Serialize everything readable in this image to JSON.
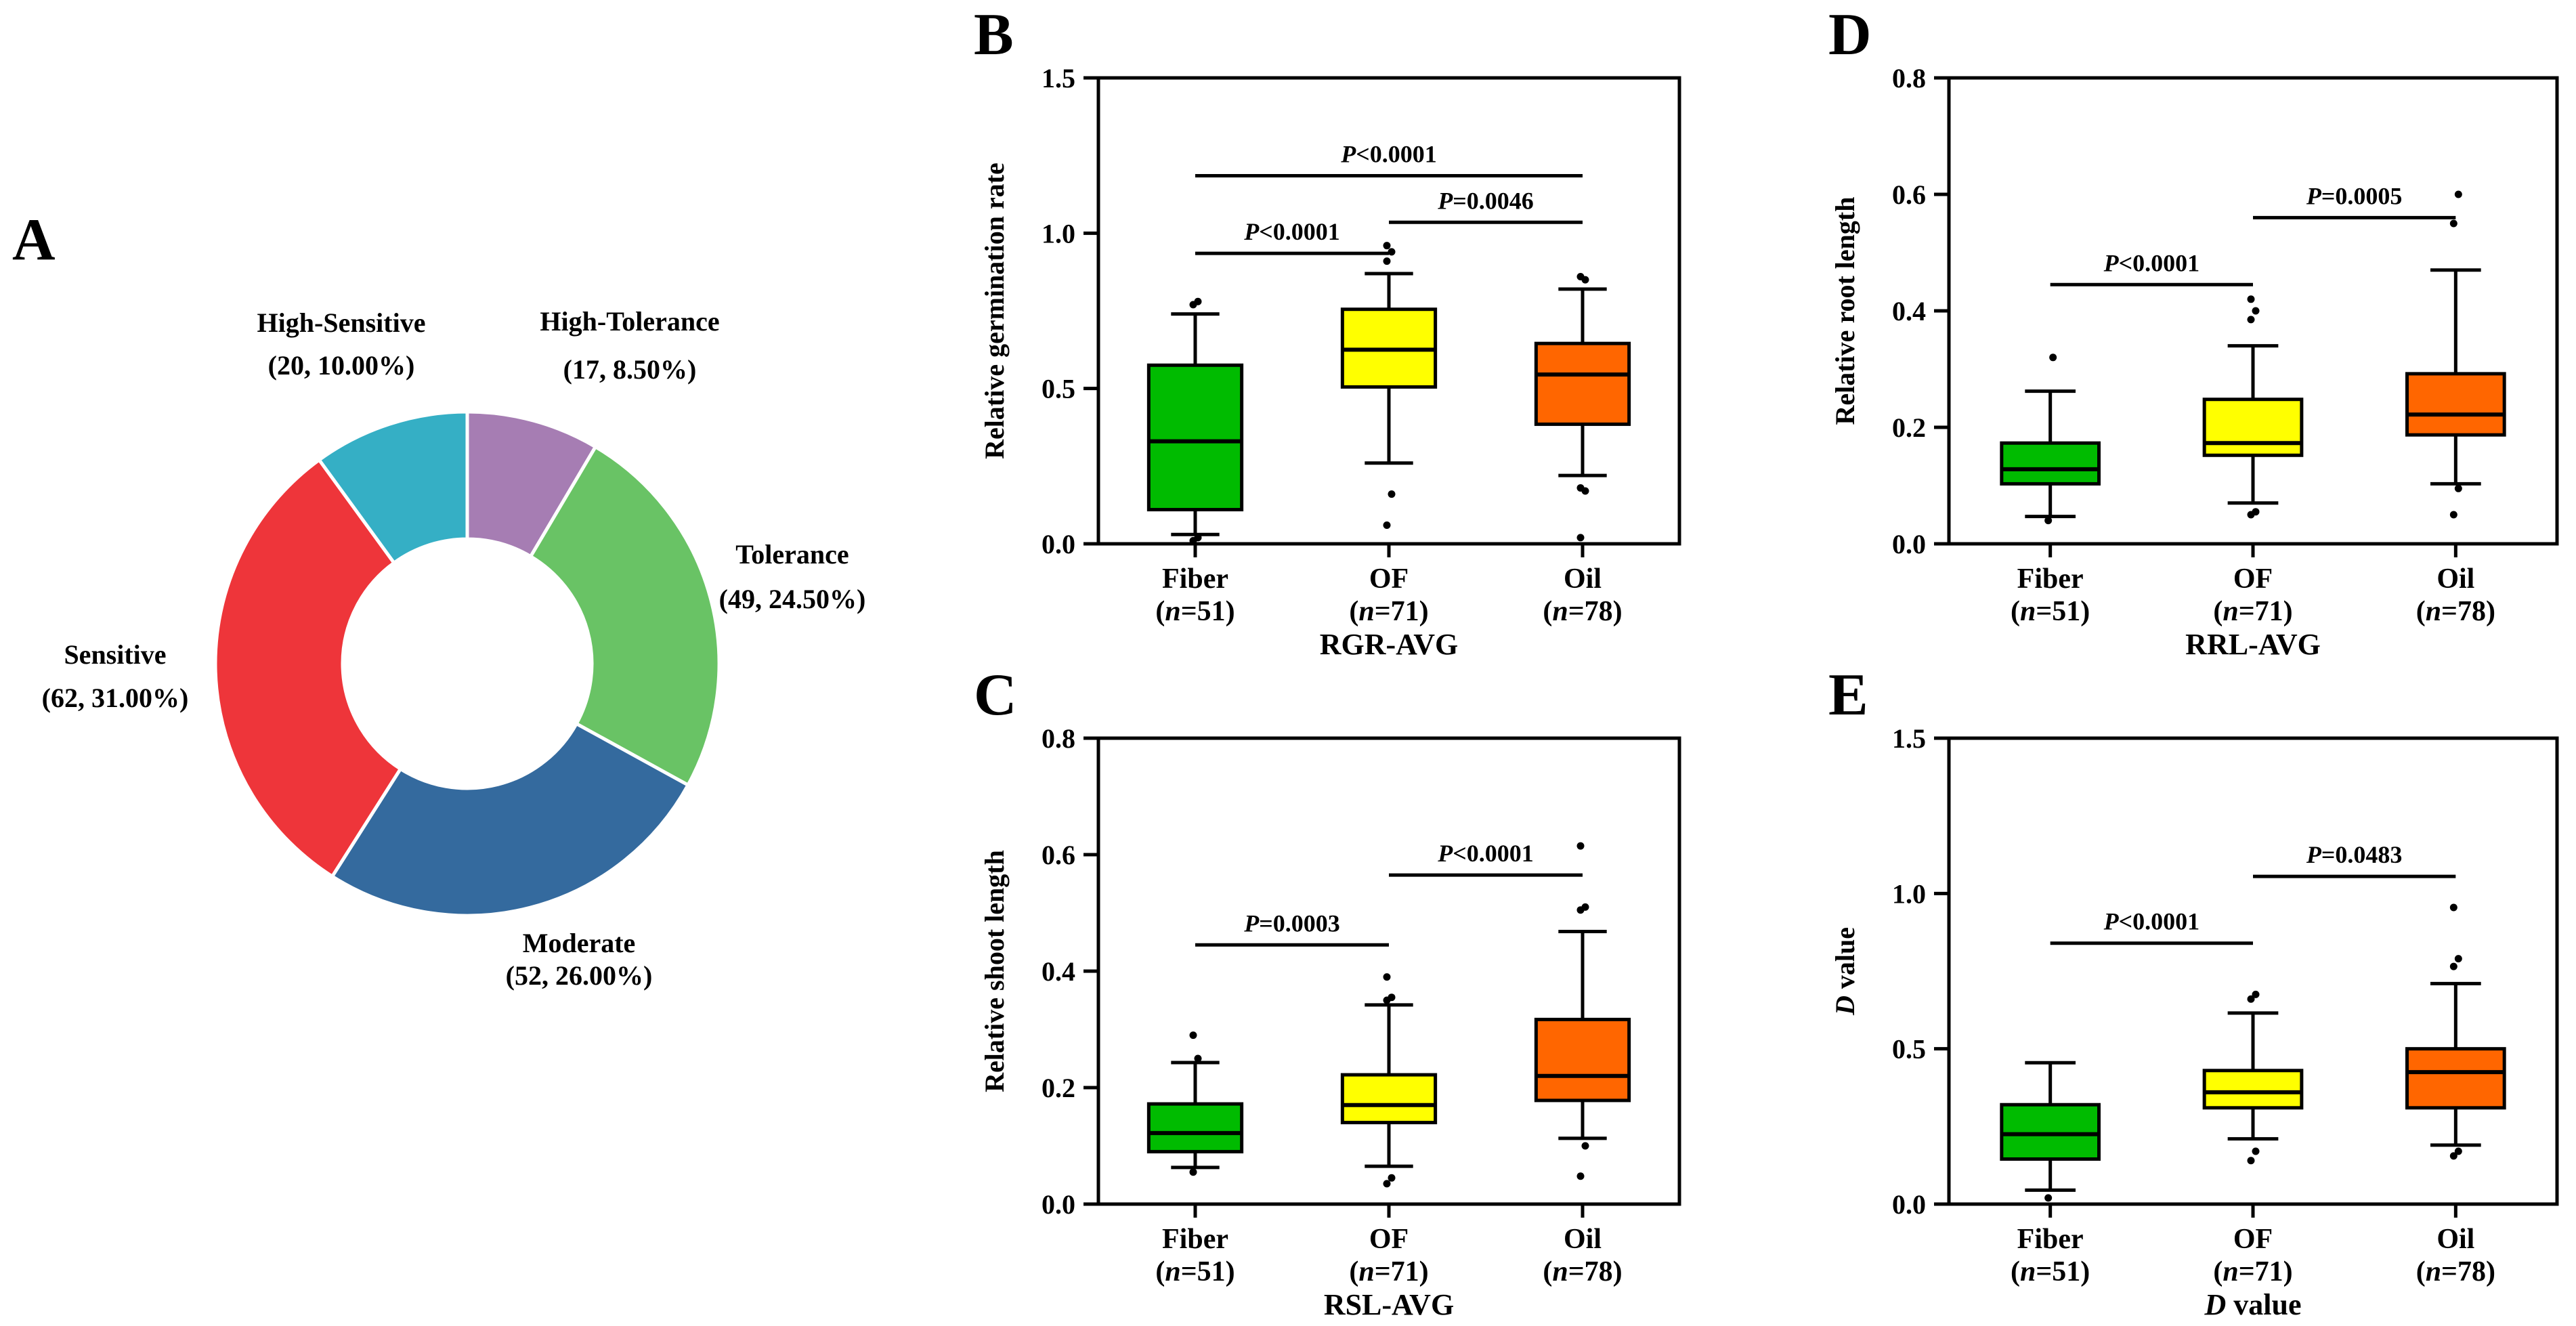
{
  "panel_letters": {
    "a": "A",
    "b": "B",
    "c": "C",
    "d": "D",
    "e": "E"
  },
  "chart_data": [
    {
      "type": "pie",
      "variant": "donut",
      "panel": "A",
      "title": "",
      "slices": [
        {
          "label": "High-Tolerance",
          "value": 17,
          "percent": "8.50%",
          "annotation": "(17, 8.50%)",
          "color": "#a67db3"
        },
        {
          "label": "Tolerance",
          "value": 49,
          "percent": "24.50%",
          "annotation": "(49, 24.50%)",
          "color": "#69c365"
        },
        {
          "label": "Moderate",
          "value": 52,
          "percent": "26.00%",
          "annotation": "(52, 26.00%)",
          "color": "#346a9e"
        },
        {
          "label": "Sensitive",
          "value": 62,
          "percent": "31.00%",
          "annotation": "(62, 31.00%)",
          "color": "#ee353a"
        },
        {
          "label": "High-Sensitive",
          "value": 20,
          "percent": "10.00%",
          "annotation": "(20, 10.00%)",
          "color": "#35afc5"
        }
      ]
    },
    {
      "type": "box",
      "panel": "B",
      "title": "",
      "xlabel": "RGR-AVG",
      "ylabel": "Relative germination rate",
      "ylim": [
        0,
        1.5
      ],
      "yticks": [
        "0.0",
        "0.5",
        "1.0",
        "1.5"
      ],
      "ytick_values": [
        0,
        0.5,
        1.0,
        1.5
      ],
      "categories": [
        {
          "name": "Fiber",
          "n_label": "(n=51)",
          "n_prefix": "(",
          "n_var": "n",
          "n_value": "=51)"
        },
        {
          "name": "OF",
          "n_label": "(n=71)",
          "n_prefix": "(",
          "n_var": "n",
          "n_value": "=71)"
        },
        {
          "name": "Oil",
          "n_label": "(n=78)",
          "n_prefix": "(",
          "n_var": "n",
          "n_value": "=78)"
        }
      ],
      "boxes": [
        {
          "whisker_low": 0.03,
          "q1": 0.11,
          "median": 0.33,
          "q3": 0.575,
          "whisker_high": 0.74,
          "color": "#00bb00",
          "outliers": [
            0.01,
            0.02,
            0.77,
            0.78
          ]
        },
        {
          "whisker_low": 0.26,
          "q1": 0.505,
          "median": 0.625,
          "q3": 0.755,
          "whisker_high": 0.87,
          "color": "#ffff00",
          "outliers": [
            0.06,
            0.16,
            0.91,
            0.94,
            0.96
          ]
        },
        {
          "whisker_low": 0.22,
          "q1": 0.385,
          "median": 0.545,
          "q3": 0.645,
          "whisker_high": 0.82,
          "color": "#ff6600",
          "outliers": [
            0.02,
            0.17,
            0.18,
            0.85,
            0.86
          ]
        }
      ],
      "comparisons": [
        {
          "from": 0,
          "to": 1,
          "y": 0.935,
          "p_symbol": "P",
          "p_text": "<0.0001"
        },
        {
          "from": 1,
          "to": 2,
          "y": 1.035,
          "p_symbol": "P",
          "p_text": "=0.0046"
        },
        {
          "from": 0,
          "to": 2,
          "y": 1.185,
          "p_symbol": "P",
          "p_text": "<0.0001"
        }
      ]
    },
    {
      "type": "box",
      "panel": "C",
      "title": "",
      "xlabel": "RSL-AVG",
      "ylabel": "Relative shoot length",
      "ylim": [
        0,
        0.8
      ],
      "yticks": [
        "0.0",
        "0.2",
        "0.4",
        "0.6",
        "0.8"
      ],
      "ytick_values": [
        0,
        0.2,
        0.4,
        0.6,
        0.8
      ],
      "categories": [
        {
          "name": "Fiber",
          "n_label": "(n=51)",
          "n_prefix": "(",
          "n_var": "n",
          "n_value": "=51)"
        },
        {
          "name": "OF",
          "n_label": "(n=71)",
          "n_prefix": "(",
          "n_var": "n",
          "n_value": "=71)"
        },
        {
          "name": "Oil",
          "n_label": "(n=78)",
          "n_prefix": "(",
          "n_var": "n",
          "n_value": "=78)"
        }
      ],
      "boxes": [
        {
          "whisker_low": 0.063,
          "q1": 0.09,
          "median": 0.122,
          "q3": 0.172,
          "whisker_high": 0.243,
          "color": "#00bb00",
          "outliers": [
            0.055,
            0.25,
            0.29
          ]
        },
        {
          "whisker_low": 0.065,
          "q1": 0.14,
          "median": 0.17,
          "q3": 0.222,
          "whisker_high": 0.342,
          "color": "#ffff00",
          "outliers": [
            0.035,
            0.045,
            0.35,
            0.355,
            0.39
          ]
        },
        {
          "whisker_low": 0.113,
          "q1": 0.178,
          "median": 0.22,
          "q3": 0.317,
          "whisker_high": 0.468,
          "color": "#ff6600",
          "outliers": [
            0.048,
            0.1,
            0.505,
            0.51,
            0.615
          ]
        }
      ],
      "comparisons": [
        {
          "from": 0,
          "to": 1,
          "y": 0.445,
          "p_symbol": "P",
          "p_text": "=0.0003"
        },
        {
          "from": 1,
          "to": 2,
          "y": 0.565,
          "p_symbol": "P",
          "p_text": "<0.0001"
        }
      ]
    },
    {
      "type": "box",
      "panel": "D",
      "title": "",
      "xlabel": "RRL-AVG",
      "ylabel": "Relative root length",
      "ylim": [
        0,
        0.8
      ],
      "yticks": [
        "0.0",
        "0.2",
        "0.4",
        "0.6",
        "0.8"
      ],
      "ytick_values": [
        0,
        0.2,
        0.4,
        0.6,
        0.8
      ],
      "categories": [
        {
          "name": "Fiber",
          "n_label": "(n=51)",
          "n_prefix": "(",
          "n_var": "n",
          "n_value": "=51)"
        },
        {
          "name": "OF",
          "n_label": "(n=71)",
          "n_prefix": "(",
          "n_var": "n",
          "n_value": "=71)"
        },
        {
          "name": "Oil",
          "n_label": "(n=78)",
          "n_prefix": "(",
          "n_var": "n",
          "n_value": "=78)"
        }
      ],
      "boxes": [
        {
          "whisker_low": 0.047,
          "q1": 0.103,
          "median": 0.128,
          "q3": 0.173,
          "whisker_high": 0.262,
          "color": "#00bb00",
          "outliers": [
            0.04,
            0.32
          ]
        },
        {
          "whisker_low": 0.07,
          "q1": 0.152,
          "median": 0.173,
          "q3": 0.248,
          "whisker_high": 0.34,
          "color": "#ffff00",
          "outliers": [
            0.05,
            0.055,
            0.385,
            0.4,
            0.42
          ]
        },
        {
          "whisker_low": 0.103,
          "q1": 0.187,
          "median": 0.222,
          "q3": 0.292,
          "whisker_high": 0.47,
          "color": "#ff6600",
          "outliers": [
            0.05,
            0.095,
            0.55,
            0.6
          ]
        }
      ],
      "comparisons": [
        {
          "from": 0,
          "to": 1,
          "y": 0.445,
          "p_symbol": "P",
          "p_text": "<0.0001"
        },
        {
          "from": 1,
          "to": 2,
          "y": 0.56,
          "p_symbol": "P",
          "p_text": "=0.0005"
        }
      ]
    },
    {
      "type": "box",
      "panel": "E",
      "title": "",
      "xlabel_var": "D",
      "xlabel_rest": " value",
      "ylabel_var": "D",
      "ylabel_rest": " value",
      "ylim": [
        0,
        1.5
      ],
      "yticks": [
        "0.0",
        "0.5",
        "1.0",
        "1.5"
      ],
      "ytick_values": [
        0,
        0.5,
        1.0,
        1.5
      ],
      "categories": [
        {
          "name": "Fiber",
          "n_label": "(n=51)",
          "n_prefix": "(",
          "n_var": "n",
          "n_value": "=51)"
        },
        {
          "name": "OF",
          "n_label": "(n=71)",
          "n_prefix": "(",
          "n_var": "n",
          "n_value": "=71)"
        },
        {
          "name": "Oil",
          "n_label": "(n=78)",
          "n_prefix": "(",
          "n_var": "n",
          "n_value": "=78)"
        }
      ],
      "boxes": [
        {
          "whisker_low": 0.045,
          "q1": 0.145,
          "median": 0.225,
          "q3": 0.32,
          "whisker_high": 0.455,
          "color": "#00bb00",
          "outliers": [
            0.02
          ]
        },
        {
          "whisker_low": 0.21,
          "q1": 0.31,
          "median": 0.36,
          "q3": 0.43,
          "whisker_high": 0.615,
          "color": "#ffff00",
          "outliers": [
            0.14,
            0.17,
            0.66,
            0.675
          ]
        },
        {
          "whisker_low": 0.19,
          "q1": 0.31,
          "median": 0.425,
          "q3": 0.5,
          "whisker_high": 0.71,
          "color": "#ff6600",
          "outliers": [
            0.155,
            0.17,
            0.765,
            0.79,
            0.955
          ]
        }
      ],
      "comparisons": [
        {
          "from": 0,
          "to": 1,
          "y": 0.84,
          "p_symbol": "P",
          "p_text": "<0.0001"
        },
        {
          "from": 1,
          "to": 2,
          "y": 1.055,
          "p_symbol": "P",
          "p_text": "=0.0483"
        }
      ]
    }
  ]
}
